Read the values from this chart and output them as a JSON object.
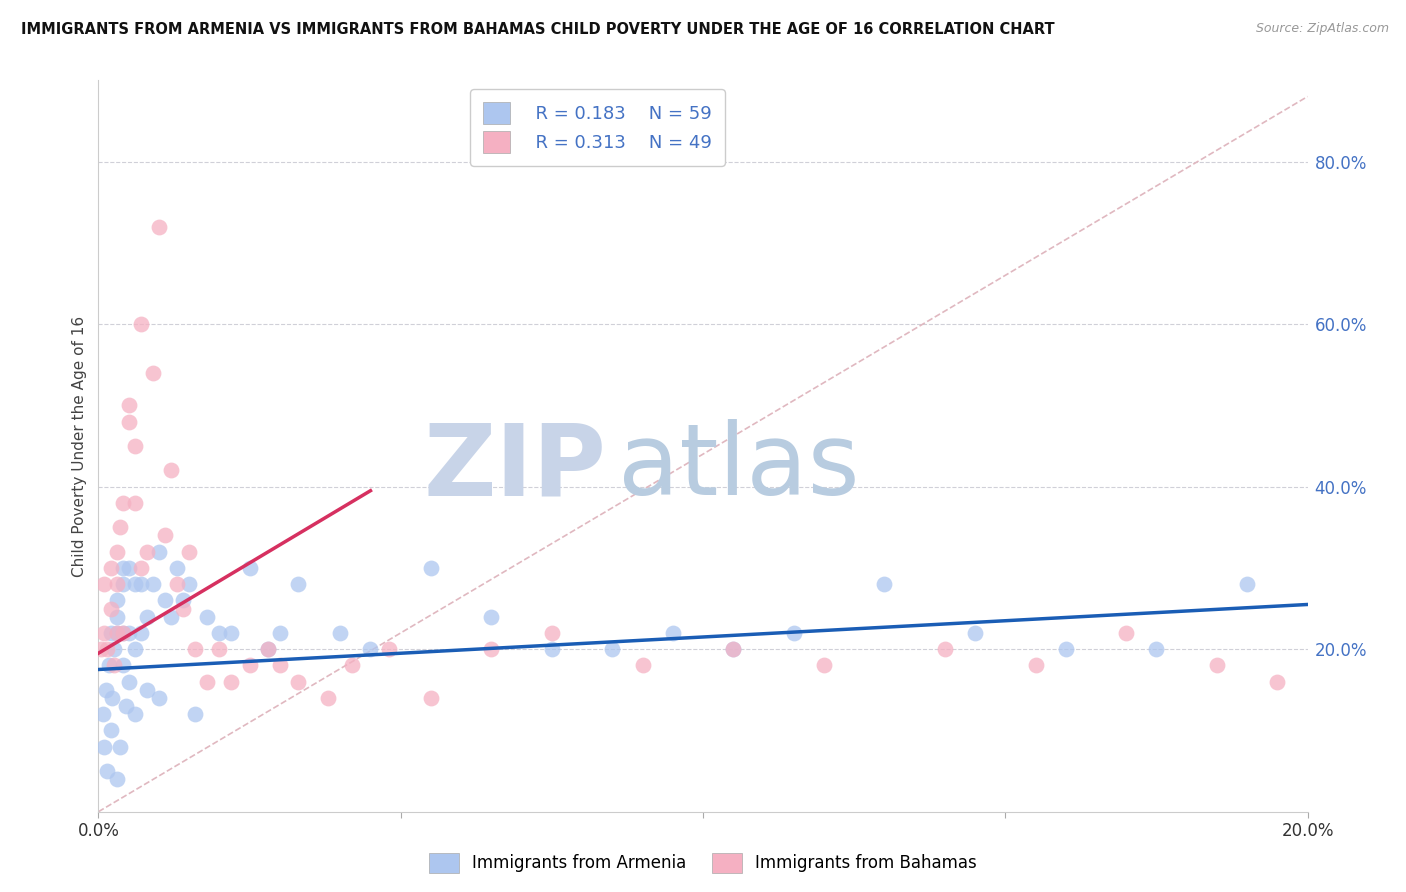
{
  "title": "IMMIGRANTS FROM ARMENIA VS IMMIGRANTS FROM BAHAMAS CHILD POVERTY UNDER THE AGE OF 16 CORRELATION CHART",
  "source": "Source: ZipAtlas.com",
  "ylabel": "Child Poverty Under the Age of 16",
  "xlim": [
    0.0,
    0.2
  ],
  "ylim": [
    0.0,
    0.9
  ],
  "yticks_right": [
    0.2,
    0.4,
    0.6,
    0.8
  ],
  "ytick_labels_right": [
    "20.0%",
    "40.0%",
    "60.0%",
    "80.0%"
  ],
  "legend_r1": "R = 0.183",
  "legend_n1": "N = 59",
  "legend_r2": "R = 0.313",
  "legend_n2": "N = 49",
  "series1_label": "Immigrants from Armenia",
  "series2_label": "Immigrants from Bahamas",
  "color_armenia": "#adc6ef",
  "color_bahamas": "#f5b0c2",
  "trendline_armenia": "#1a5db5",
  "trendline_bahamas": "#d63060",
  "refline_color": "#d8c8d0",
  "armenia_x": [
    0.0008,
    0.001,
    0.0012,
    0.0015,
    0.0018,
    0.002,
    0.002,
    0.0022,
    0.0025,
    0.003,
    0.003,
    0.003,
    0.003,
    0.0035,
    0.004,
    0.004,
    0.004,
    0.004,
    0.0045,
    0.005,
    0.005,
    0.005,
    0.006,
    0.006,
    0.006,
    0.007,
    0.007,
    0.008,
    0.008,
    0.009,
    0.01,
    0.01,
    0.011,
    0.012,
    0.013,
    0.014,
    0.015,
    0.016,
    0.018,
    0.02,
    0.022,
    0.025,
    0.028,
    0.03,
    0.033,
    0.04,
    0.045,
    0.055,
    0.065,
    0.075,
    0.085,
    0.095,
    0.105,
    0.115,
    0.13,
    0.145,
    0.16,
    0.175,
    0.19
  ],
  "armenia_y": [
    0.12,
    0.08,
    0.15,
    0.05,
    0.18,
    0.1,
    0.22,
    0.14,
    0.2,
    0.04,
    0.22,
    0.24,
    0.26,
    0.08,
    0.18,
    0.22,
    0.28,
    0.3,
    0.13,
    0.16,
    0.22,
    0.3,
    0.12,
    0.2,
    0.28,
    0.22,
    0.28,
    0.15,
    0.24,
    0.28,
    0.14,
    0.32,
    0.26,
    0.24,
    0.3,
    0.26,
    0.28,
    0.12,
    0.24,
    0.22,
    0.22,
    0.3,
    0.2,
    0.22,
    0.28,
    0.22,
    0.2,
    0.3,
    0.24,
    0.2,
    0.2,
    0.22,
    0.2,
    0.22,
    0.28,
    0.22,
    0.2,
    0.2,
    0.28
  ],
  "bahamas_x": [
    0.0005,
    0.001,
    0.001,
    0.0015,
    0.002,
    0.002,
    0.0025,
    0.003,
    0.003,
    0.003,
    0.0035,
    0.004,
    0.004,
    0.005,
    0.005,
    0.006,
    0.006,
    0.007,
    0.007,
    0.008,
    0.009,
    0.01,
    0.011,
    0.012,
    0.013,
    0.014,
    0.015,
    0.016,
    0.018,
    0.02,
    0.022,
    0.025,
    0.028,
    0.03,
    0.033,
    0.038,
    0.042,
    0.048,
    0.055,
    0.065,
    0.075,
    0.09,
    0.105,
    0.12,
    0.14,
    0.155,
    0.17,
    0.185,
    0.195
  ],
  "bahamas_y": [
    0.2,
    0.22,
    0.28,
    0.2,
    0.25,
    0.3,
    0.18,
    0.22,
    0.28,
    0.32,
    0.35,
    0.22,
    0.38,
    0.48,
    0.5,
    0.45,
    0.38,
    0.3,
    0.6,
    0.32,
    0.54,
    0.72,
    0.34,
    0.42,
    0.28,
    0.25,
    0.32,
    0.2,
    0.16,
    0.2,
    0.16,
    0.18,
    0.2,
    0.18,
    0.16,
    0.14,
    0.18,
    0.2,
    0.14,
    0.2,
    0.22,
    0.18,
    0.2,
    0.18,
    0.2,
    0.18,
    0.22,
    0.18,
    0.16
  ],
  "arm_trend_x": [
    0.0,
    0.2
  ],
  "arm_trend_y": [
    0.175,
    0.255
  ],
  "bah_trend_x": [
    0.0,
    0.045
  ],
  "bah_trend_y": [
    0.195,
    0.395
  ]
}
